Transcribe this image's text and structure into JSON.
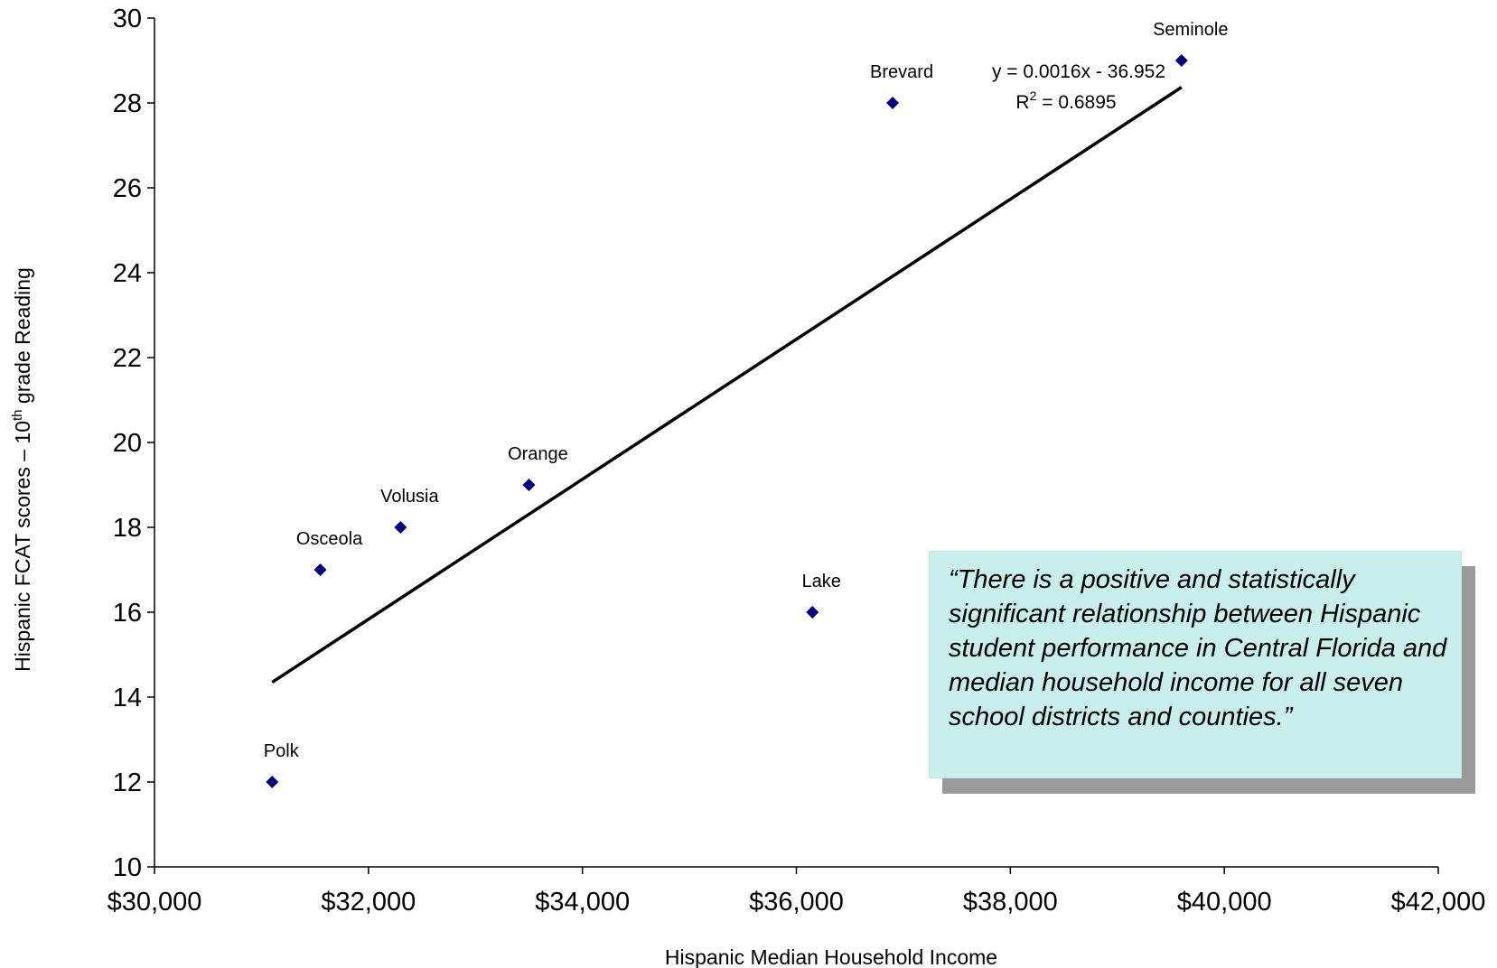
{
  "chart_data": {
    "type": "scatter",
    "xlabel": "Hispanic Median Household Income",
    "ylabel": {
      "prefix": "Hispanic FCAT scores – 10",
      "sup": "th",
      "suffix": " grade Reading"
    },
    "xlim": [
      30000,
      42000
    ],
    "ylim": [
      10,
      30
    ],
    "x_ticks": [
      {
        "value": 30000,
        "label": "$30,000"
      },
      {
        "value": 32000,
        "label": "$32,000"
      },
      {
        "value": 34000,
        "label": "$34,000"
      },
      {
        "value": 36000,
        "label": "$36,000"
      },
      {
        "value": 38000,
        "label": "$38,000"
      },
      {
        "value": 40000,
        "label": "$40,000"
      },
      {
        "value": 42000,
        "label": "$42,000"
      }
    ],
    "y_ticks": [
      {
        "value": 10,
        "label": "10"
      },
      {
        "value": 12,
        "label": "12"
      },
      {
        "value": 14,
        "label": "14"
      },
      {
        "value": 16,
        "label": "16"
      },
      {
        "value": 18,
        "label": "18"
      },
      {
        "value": 20,
        "label": "20"
      },
      {
        "value": 22,
        "label": "22"
      },
      {
        "value": 24,
        "label": "24"
      },
      {
        "value": 26,
        "label": "26"
      },
      {
        "value": 28,
        "label": "28"
      },
      {
        "value": 30,
        "label": "30"
      }
    ],
    "points": [
      {
        "label": "Polk",
        "x": 31100,
        "y": 12
      },
      {
        "label": "Osceola",
        "x": 31550,
        "y": 17
      },
      {
        "label": "Volusia",
        "x": 32300,
        "y": 18
      },
      {
        "label": "Orange",
        "x": 33500,
        "y": 19
      },
      {
        "label": "Lake",
        "x": 36150,
        "y": 16
      },
      {
        "label": "Brevard",
        "x": 36900,
        "y": 28
      },
      {
        "label": "Seminole",
        "x": 39600,
        "y": 29
      }
    ],
    "marker_color": "#000080",
    "trendline": {
      "equation": "y = 0.0016x - 36.952",
      "r2_prefix": "R",
      "r2_sup": "2",
      "r2_value": " = 0.6895",
      "x_start": 31100,
      "x_end": 39600,
      "y_start": 14.35,
      "y_end": 28.37,
      "color": "#000000"
    },
    "grid": false,
    "legend": "none"
  },
  "callout": {
    "text": "“There is a positive and statistically significant relationship between Hispanic student performance in Central Florida and median household income for all seven school districts and counties.”",
    "background": "#c9efec"
  }
}
